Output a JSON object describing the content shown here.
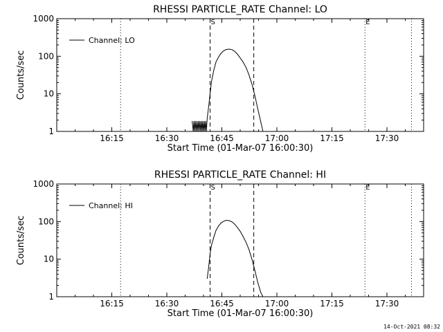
{
  "footer_timestamp": "14-Oct-2021 08:32",
  "chart_data": [
    {
      "type": "line",
      "title": "RHESSI PARTICLE_RATE Channel: LO",
      "xlabel": "Start Time (01-Mar-07 16:00:30)",
      "ylabel": "Counts/sec",
      "yscale": "log",
      "ylim": [
        1,
        1000
      ],
      "xlim_minutes": [
        0,
        100
      ],
      "x_tick_minutes": [
        15,
        30,
        45,
        60,
        75,
        90
      ],
      "x_tick_labels": [
        "16:15",
        "16:30",
        "16:45",
        "17:00",
        "17:15",
        "17:30"
      ],
      "y_tick_values": [
        1,
        10,
        100,
        1000
      ],
      "y_tick_labels": [
        "1",
        "10",
        "100",
        "1000"
      ],
      "legend": {
        "label": "Channel: LO",
        "position": "top-left"
      },
      "markers": [
        {
          "label": "S",
          "minute": 41.8
        },
        {
          "label": "E",
          "minute": 84
        }
      ],
      "dashed_lines_minutes": [
        41.8,
        53.7
      ],
      "dotted_lines_minutes": [
        17.4,
        84,
        96.7
      ],
      "series": [
        {
          "x": [
            36.9,
            37.2,
            37.4,
            37.6,
            37.8,
            38.0,
            38.2,
            38.4,
            38.6,
            38.8,
            39.0,
            39.2,
            39.4,
            39.6,
            39.8,
            40.0,
            40.2,
            40.4,
            40.6,
            40.8,
            41.0,
            41.4,
            41.8,
            42.2,
            42.8,
            43.4,
            44.1,
            44.8,
            45.5,
            46.2,
            47.0,
            47.8,
            48.5,
            49.2,
            50.0,
            50.8,
            51.6,
            52.4,
            53.2,
            54.0,
            54.8,
            55.6,
            56.2
          ],
          "y": [
            1.9,
            1.0,
            1.9,
            1.0,
            1.9,
            1.0,
            1.9,
            1.0,
            1.9,
            1.0,
            1.9,
            1.0,
            1.9,
            1.0,
            1.9,
            1.0,
            1.9,
            1.0,
            1.9,
            1.0,
            2.2,
            4.5,
            10,
            22,
            42,
            70,
            95,
            120,
            140,
            152,
            155,
            150,
            135,
            115,
            90,
            70,
            50,
            32,
            18,
            9,
            4,
            1.8,
            1.0
          ]
        }
      ]
    },
    {
      "type": "line",
      "title": "RHESSI PARTICLE_RATE Channel: HI",
      "xlabel": "Start Time (01-Mar-07 16:00:30)",
      "ylabel": "Counts/sec",
      "yscale": "log",
      "ylim": [
        1,
        1000
      ],
      "xlim_minutes": [
        0,
        100
      ],
      "x_tick_minutes": [
        15,
        30,
        45,
        60,
        75,
        90
      ],
      "x_tick_labels": [
        "16:15",
        "16:30",
        "16:45",
        "17:00",
        "17:15",
        "17:30"
      ],
      "y_tick_values": [
        1,
        10,
        100,
        1000
      ],
      "y_tick_labels": [
        "1",
        "10",
        "100",
        "1000"
      ],
      "legend": {
        "label": "Channel: HI",
        "position": "top-left"
      },
      "markers": [
        {
          "label": "S",
          "minute": 41.8
        },
        {
          "label": "E",
          "minute": 84
        }
      ],
      "dashed_lines_minutes": [
        41.8,
        53.7
      ],
      "dotted_lines_minutes": [
        17.4,
        84,
        96.7
      ],
      "series": [
        {
          "x": [
            41.0,
            41.4,
            41.8,
            42.2,
            42.8,
            43.4,
            44.1,
            44.8,
            45.5,
            46.2,
            47.0,
            47.8,
            48.5,
            49.2,
            50.0,
            50.8,
            51.6,
            52.4,
            53.2,
            54.0,
            54.8,
            55.6,
            56.2
          ],
          "y": [
            3.0,
            6.0,
            14,
            24,
            38,
            58,
            76,
            92,
            102,
            108,
            106,
            98,
            85,
            70,
            55,
            40,
            28,
            18,
            10,
            5,
            2.4,
            1.3,
            1.0
          ]
        }
      ]
    }
  ]
}
